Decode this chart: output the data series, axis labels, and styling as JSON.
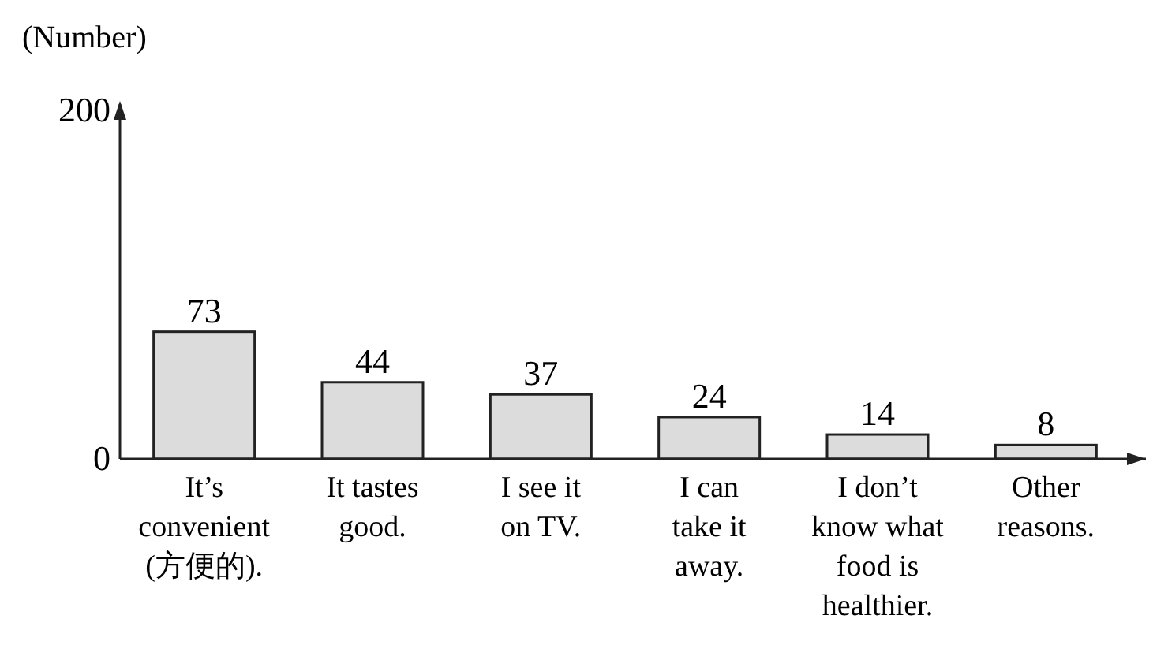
{
  "chart_data": {
    "type": "bar",
    "ylabel": "(Number)",
    "categories": [
      "It’s\nconvenient\n(方便的).",
      "It tastes\ngood.",
      "I see it\non TV.",
      "I can\ntake it\naway.",
      "I don’t\nknow what\nfood is\nhealthier.",
      "Other\nreasons."
    ],
    "values": [
      73,
      44,
      37,
      24,
      14,
      8
    ],
    "color": "#dcdcdc",
    "ylim": [
      0,
      200
    ],
    "yticks": [
      0,
      200
    ],
    "data_labels": true,
    "grid": false
  }
}
